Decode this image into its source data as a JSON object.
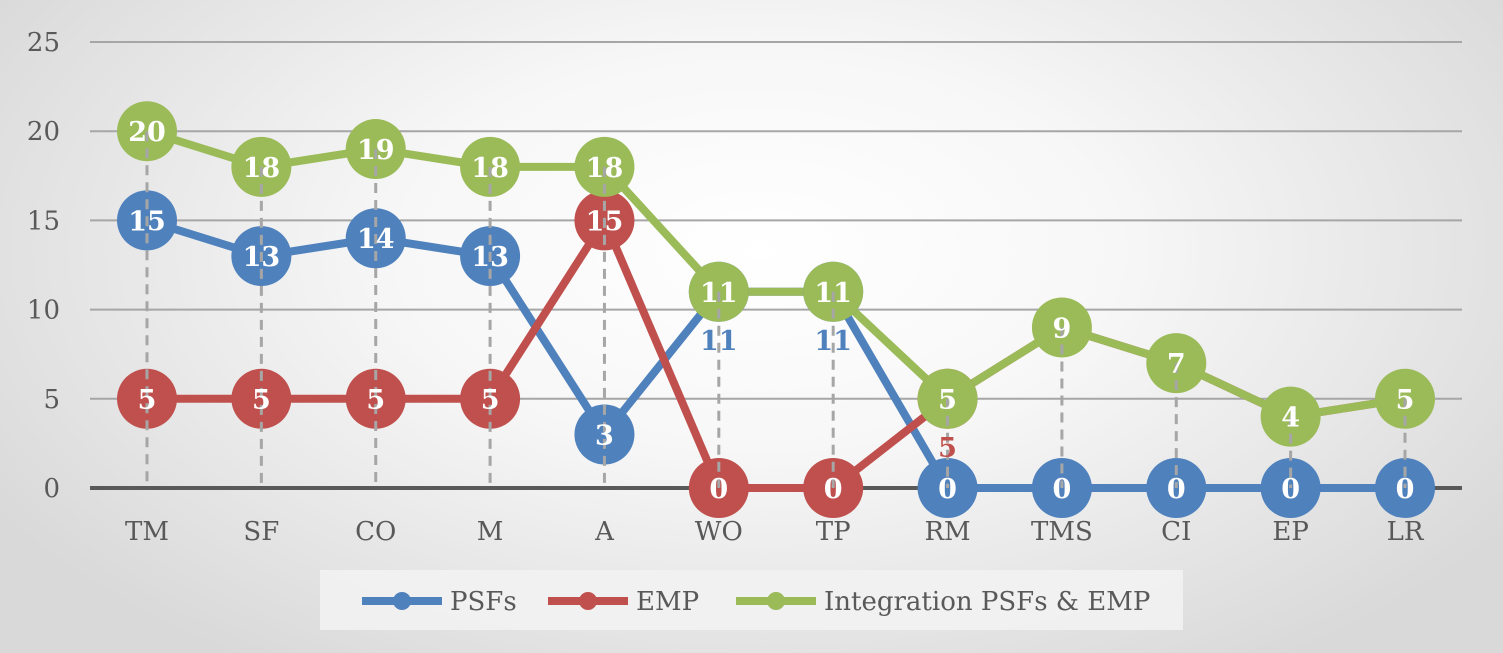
{
  "chart_data": {
    "type": "line",
    "title": "",
    "xlabel": "",
    "ylabel": "",
    "ylim": [
      0,
      25
    ],
    "yticks": [
      0,
      5,
      10,
      15,
      20,
      25
    ],
    "grid": true,
    "legend_position": "bottom",
    "categories": [
      "TM",
      "SF",
      "CO",
      "M",
      "A",
      "WO",
      "TP",
      "RM",
      "TMS",
      "CI",
      "EP",
      "LR"
    ],
    "series": [
      {
        "name": "PSFs",
        "color": "#4f81bd",
        "values": [
          15,
          13,
          14,
          13,
          3,
          11,
          11,
          0,
          0,
          0,
          0,
          0
        ]
      },
      {
        "name": "EMP",
        "color": "#c0504d",
        "values": [
          5,
          5,
          5,
          5,
          15,
          0,
          0,
          5,
          9,
          7,
          4,
          5
        ]
      },
      {
        "name": "Integration PSFs & EMP",
        "color": "#9bbb59",
        "values": [
          20,
          18,
          19,
          18,
          18,
          11,
          11,
          5,
          9,
          7,
          4,
          5
        ]
      }
    ],
    "hidden_labels": {
      "EMP": [
        8,
        9,
        10,
        11
      ]
    }
  }
}
